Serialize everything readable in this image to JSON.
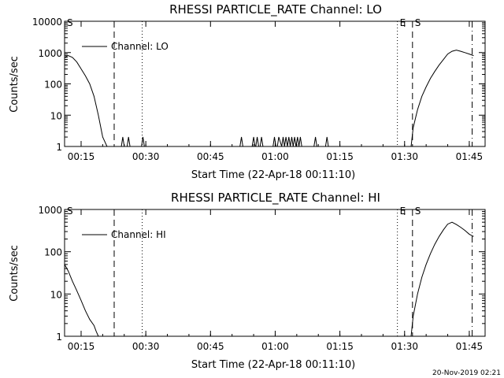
{
  "footer_date": "20-Nov-2019 02:21",
  "chart_data": [
    {
      "type": "line",
      "title": "RHESSI PARTICLE_RATE Channel: LO",
      "xlabel": "Start Time (22-Apr-18 00:11:10)",
      "ylabel": "Counts/sec",
      "y_scale": "log",
      "ylim": [
        1,
        10000
      ],
      "xlim": [
        "00:11:10",
        "01:48:40"
      ],
      "xticks": [
        "00:15",
        "00:30",
        "00:45",
        "01:00",
        "01:15",
        "01:30",
        "01:45"
      ],
      "yticks": [
        "1",
        "10",
        "100",
        "1000",
        "10000"
      ],
      "legend": "Channel: LO",
      "legend_position": "top-left",
      "markers": [
        {
          "label": "S",
          "time": "00:11:10",
          "style": "dashed"
        },
        {
          "label": "",
          "time": "00:22:40",
          "style": "dashed"
        },
        {
          "label": "",
          "time": "00:29:10",
          "style": "dotted"
        },
        {
          "label": "E",
          "time": "01:28:20",
          "style": "dotted"
        },
        {
          "label": "S",
          "time": "01:31:50",
          "style": "dashed"
        },
        {
          "label": "",
          "time": "01:45:40",
          "style": "dashdot"
        }
      ],
      "series": [
        {
          "name": "Channel: LO",
          "x": [
            "00:11:10",
            "00:12:00",
            "00:13:00",
            "00:14:00",
            "00:15:00",
            "00:16:00",
            "00:17:00",
            "00:18:00",
            "00:19:00",
            "00:20:00",
            "00:21:00",
            "00:21:50",
            "00:24:20",
            "00:24:40",
            "00:25:00",
            "00:25:40",
            "00:26:00",
            "00:26:20",
            "00:29:00",
            "00:29:20",
            "00:29:40",
            "00:51:50",
            "00:52:10",
            "00:52:30",
            "00:54:40",
            "00:55:00",
            "00:55:20",
            "00:55:30",
            "00:55:50",
            "00:56:10",
            "00:56:30",
            "00:56:50",
            "00:57:10",
            "00:59:30",
            "00:59:50",
            "01:00:10",
            "01:00:30",
            "01:00:50",
            "01:01:30",
            "01:01:50",
            "01:02:10",
            "01:02:30",
            "01:02:50",
            "01:03:10",
            "01:03:30",
            "01:03:50",
            "01:04:10",
            "01:04:30",
            "01:04:50",
            "01:05:10",
            "01:05:30",
            "01:05:50",
            "01:06:10",
            "01:09:00",
            "01:09:20",
            "01:09:40",
            "01:11:40",
            "01:12:00",
            "01:12:20",
            "01:31:30",
            "01:32:00",
            "01:33:00",
            "01:34:00",
            "01:35:00",
            "01:36:00",
            "01:37:00",
            "01:38:00",
            "01:39:00",
            "01:40:00",
            "01:41:00",
            "01:42:00",
            "01:43:00",
            "01:44:00",
            "01:45:00",
            "01:46:00"
          ],
          "values": [
            700,
            800,
            700,
            500,
            300,
            180,
            100,
            40,
            10,
            2,
            1,
            1,
            1,
            2,
            1,
            1,
            2,
            1,
            1,
            2,
            1,
            1,
            2,
            1,
            1,
            2,
            1,
            1,
            2,
            1,
            1,
            2,
            1,
            1,
            2,
            1,
            1,
            2,
            1,
            2,
            1,
            2,
            1,
            2,
            1,
            2,
            1,
            2,
            1,
            2,
            1,
            2,
            1,
            1,
            2,
            1,
            1,
            2,
            1,
            1,
            4,
            15,
            40,
            80,
            150,
            250,
            400,
            600,
            900,
            1100,
            1200,
            1100,
            1000,
            900,
            800
          ]
        }
      ]
    },
    {
      "type": "line",
      "title": "RHESSI PARTICLE_RATE Channel: HI",
      "xlabel": "Start Time (22-Apr-18 00:11:10)",
      "ylabel": "Counts/sec",
      "y_scale": "log",
      "ylim": [
        1,
        1000
      ],
      "xlim": [
        "00:11:10",
        "01:48:40"
      ],
      "xticks": [
        "00:15",
        "00:30",
        "00:45",
        "01:00",
        "01:15",
        "01:30",
        "01:45"
      ],
      "yticks": [
        "1",
        "10",
        "100",
        "1000"
      ],
      "legend": "Channel: HI",
      "legend_position": "top-left",
      "markers": [
        {
          "label": "S",
          "time": "00:11:10",
          "style": "dashed"
        },
        {
          "label": "",
          "time": "00:22:40",
          "style": "dashed"
        },
        {
          "label": "",
          "time": "00:29:10",
          "style": "dotted"
        },
        {
          "label": "E",
          "time": "01:28:20",
          "style": "dotted"
        },
        {
          "label": "S",
          "time": "01:31:50",
          "style": "dashed"
        },
        {
          "label": "",
          "time": "01:45:40",
          "style": "dashdot"
        }
      ],
      "series": [
        {
          "name": "Channel: HI",
          "x": [
            "00:11:10",
            "00:12:00",
            "00:13:00",
            "00:14:00",
            "00:15:00",
            "00:16:00",
            "00:17:00",
            "00:18:00",
            "00:18:30",
            "00:19:00",
            "01:31:30",
            "01:32:00",
            "01:33:00",
            "01:34:00",
            "01:35:00",
            "01:36:00",
            "01:37:00",
            "01:38:00",
            "01:39:00",
            "01:40:00",
            "01:41:00",
            "01:42:00",
            "01:43:00",
            "01:44:00",
            "01:45:00",
            "01:46:00"
          ],
          "values": [
            50,
            35,
            20,
            12,
            7,
            4,
            2.5,
            1.8,
            1.3,
            1,
            1,
            3,
            10,
            25,
            50,
            90,
            150,
            230,
            330,
            450,
            500,
            440,
            380,
            320,
            260,
            230
          ]
        }
      ]
    }
  ]
}
